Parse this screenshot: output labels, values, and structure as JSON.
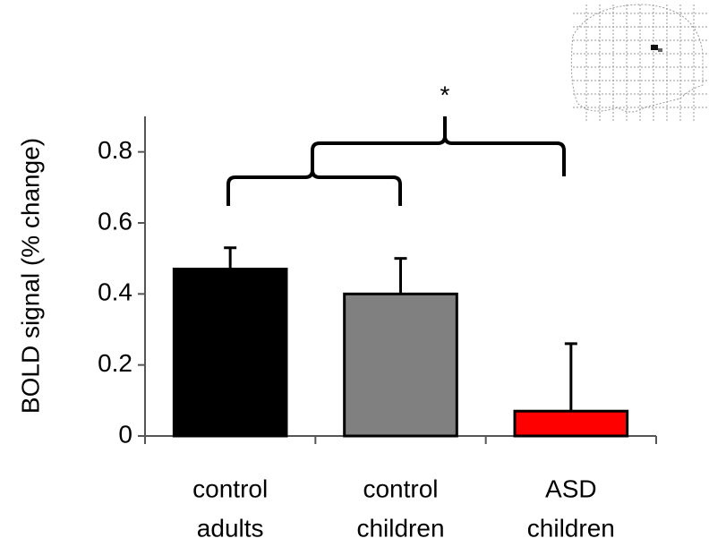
{
  "chart_data": {
    "type": "bar",
    "ylabel": "BOLD signal (% change)",
    "categories": [
      [
        "control",
        "adults"
      ],
      [
        "control",
        "children"
      ],
      [
        "ASD",
        "children"
      ]
    ],
    "values": [
      0.47,
      0.4,
      0.07
    ],
    "errors": [
      0.06,
      0.1,
      0.19
    ],
    "colors": [
      "#000000",
      "#808080",
      "#ff0000"
    ],
    "ylim": [
      0,
      0.9
    ],
    "yticks": [
      0,
      0.2,
      0.4,
      0.6,
      0.8
    ],
    "annotation": "*"
  }
}
